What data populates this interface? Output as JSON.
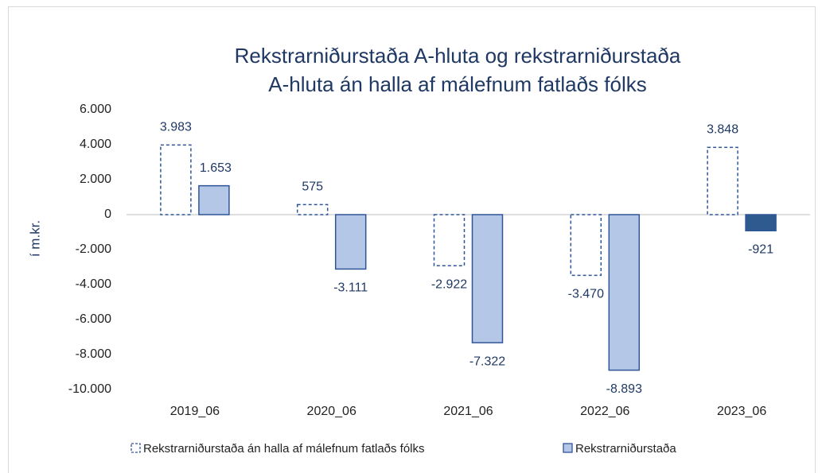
{
  "chart_data": {
    "type": "bar",
    "title": [
      "Rekstrarniðurstaða A-hluta og rekstrarniðurstaða",
      "A-hluta án halla af málefnum fatlaðs fólks"
    ],
    "y_label": "í m.kr.",
    "categories": [
      "2019_06",
      "2020_06",
      "2021_06",
      "2022_06",
      "2023_06"
    ],
    "series": [
      {
        "name": "Rekstrarniðurstaða án halla af málefnum fatlaðs fólks",
        "color": "#2f5597",
        "style": "dashed",
        "values": [
          3983,
          575,
          -2922,
          -3470,
          3848
        ],
        "value_labels": [
          "3.983",
          "575",
          "-2.922",
          "-3.470",
          "3.848"
        ]
      },
      {
        "name": "Rekstrarniðurstaða",
        "color": "#2f5597",
        "fill": "#b4c7e7",
        "colors": [
          "#b4c7e7",
          "#b4c7e7",
          "#b4c7e7",
          "#b4c7e7",
          "#2f5a8f"
        ],
        "values": [
          1653,
          -3111,
          -7322,
          -8893,
          -921
        ],
        "value_labels": [
          "1.653",
          "-3.111",
          "-7.322",
          "-8.893",
          "-921"
        ]
      }
    ],
    "ylim": [
      -10000,
      6000
    ],
    "yticks": [
      {
        "value": -10000,
        "label": "-10.000"
      },
      {
        "value": -8000,
        "label": "-8.000"
      },
      {
        "value": -6000,
        "label": "-6.000"
      },
      {
        "value": -4000,
        "label": "-4.000"
      },
      {
        "value": -2000,
        "label": "-2.000"
      },
      0,
      {
        "value": 2000,
        "label": "2.000"
      },
      {
        "value": 4000,
        "label": "4.000"
      },
      {
        "value": 6000,
        "label": "6.000"
      }
    ],
    "grid": false,
    "legend": "bottom"
  }
}
